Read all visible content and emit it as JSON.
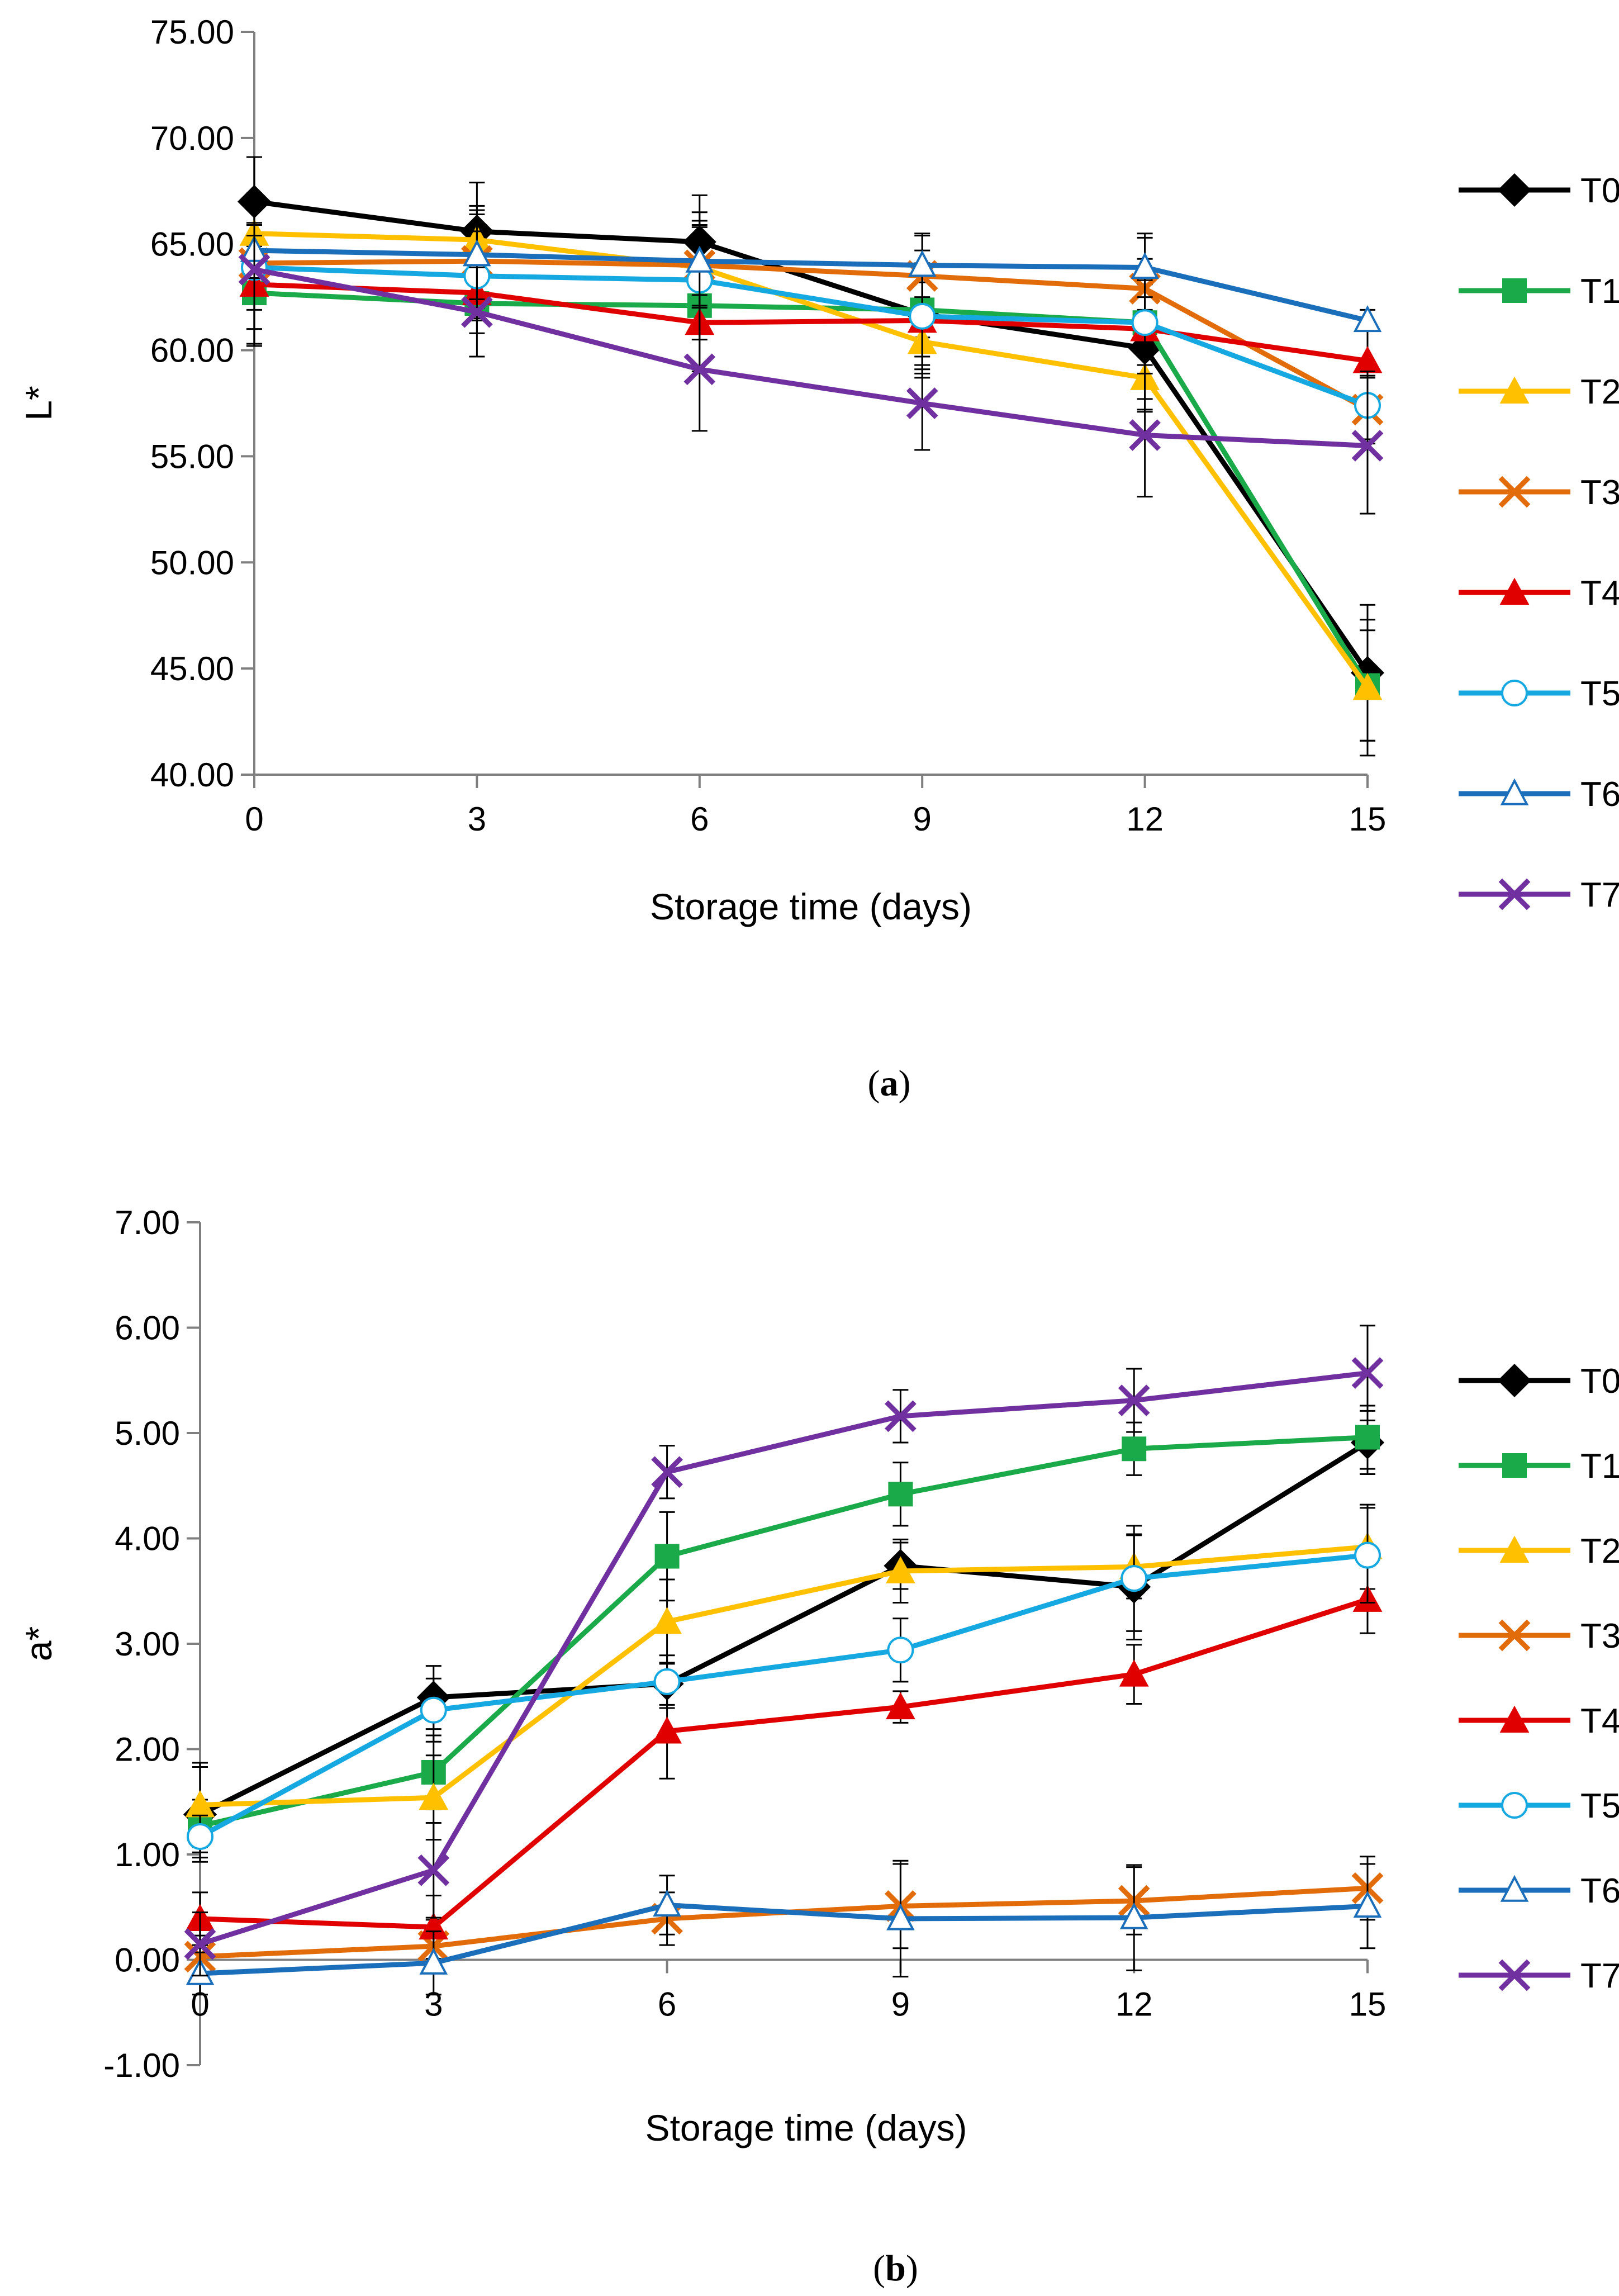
{
  "chart_data": [
    {
      "type": "line",
      "panel_label": "a",
      "xlabel": "Storage time (days)",
      "ylabel": "L*",
      "x": [
        0,
        3,
        6,
        9,
        12,
        15
      ],
      "x_tick_labels": [
        "0",
        "3",
        "6",
        "9",
        "12",
        "15"
      ],
      "ylim": [
        40,
        75
      ],
      "y_ticks": [
        40,
        45,
        50,
        55,
        60,
        65,
        70,
        75
      ],
      "y_tick_labels": [
        "40.00",
        "45.00",
        "50.00",
        "55.00",
        "60.00",
        "65.00",
        "70.00",
        "75.00"
      ],
      "legend_position": "right",
      "series": [
        {
          "name": "T0",
          "color": "#000000",
          "marker": "diamond",
          "values": [
            67.0,
            65.6,
            65.1,
            61.7,
            60.1,
            44.8
          ],
          "errors": [
            2.1,
            2.3,
            2.2,
            3.0,
            3.0,
            3.2
          ]
        },
        {
          "name": "T1",
          "color": "#1aaa4a",
          "marker": "square",
          "values": [
            62.7,
            62.2,
            62.1,
            61.9,
            61.3,
            44.2
          ],
          "errors": [
            1.7,
            1.4,
            1.3,
            1.3,
            0.6,
            2.6
          ]
        },
        {
          "name": "T2",
          "color": "#ffc000",
          "marker": "triangle",
          "values": [
            65.5,
            65.2,
            63.9,
            60.4,
            58.7,
            44.1
          ],
          "errors": [
            1.7,
            1.6,
            2.6,
            1.5,
            1.5,
            3.2
          ]
        },
        {
          "name": "T3",
          "color": "#e36c0a",
          "marker": "x",
          "values": [
            64.1,
            64.2,
            64.0,
            63.5,
            62.9,
            57.2
          ],
          "errors": [
            1.3,
            2.2,
            1.9,
            1.9,
            2.6,
            1.6
          ]
        },
        {
          "name": "T4",
          "color": "#e00000",
          "marker": "triangle",
          "values": [
            63.1,
            62.7,
            61.3,
            61.4,
            61.0,
            59.5
          ],
          "errors": [
            2.8,
            1.2,
            2.3,
            2.1,
            3.3,
            1.7
          ]
        },
        {
          "name": "T5",
          "color": "#16a8e0",
          "marker": "circle-open",
          "values": [
            63.9,
            63.5,
            63.3,
            61.6,
            61.3,
            57.4
          ],
          "errors": [
            2.0,
            2.1,
            2.8,
            2.5,
            2.0,
            1.6
          ]
        },
        {
          "name": "T6",
          "color": "#1b6fba",
          "marker": "triangle-open",
          "values": [
            64.7,
            64.5,
            64.2,
            64.0,
            63.9,
            61.4
          ],
          "errors": [
            1.3,
            2.1,
            1.6,
            1.5,
            1.4,
            0.5
          ]
        },
        {
          "name": "T7",
          "color": "#7030a0",
          "marker": "x",
          "values": [
            63.8,
            61.8,
            59.1,
            57.5,
            56.0,
            55.5
          ],
          "errors": [
            3.6,
            2.1,
            2.9,
            2.2,
            2.9,
            3.2
          ]
        }
      ]
    },
    {
      "type": "line",
      "panel_label": "b",
      "xlabel": "Storage time (days)",
      "ylabel": "a*",
      "x": [
        0,
        3,
        6,
        9,
        12,
        15
      ],
      "x_tick_labels": [
        "0",
        "3",
        "6",
        "9",
        "12",
        "15"
      ],
      "ylim": [
        -1,
        7
      ],
      "y_ticks": [
        -1,
        0,
        1,
        2,
        3,
        4,
        5,
        6,
        7
      ],
      "y_tick_labels": [
        "-1.00",
        "0.00",
        "1.00",
        "2.00",
        "3.00",
        "4.00",
        "5.00",
        "6.00",
        "7.00"
      ],
      "legend_position": "right",
      "series": [
        {
          "name": "T0",
          "color": "#000000",
          "marker": "diamond",
          "values": [
            1.38,
            2.49,
            2.62,
            3.74,
            3.54,
            4.91
          ],
          "errors": [
            0.45,
            0.3,
            0.2,
            0.22,
            0.5,
            0.3
          ]
        },
        {
          "name": "T1",
          "color": "#1aaa4a",
          "marker": "square",
          "values": [
            1.27,
            1.78,
            3.83,
            4.42,
            4.85,
            4.96
          ],
          "errors": [
            0.25,
            0.35,
            0.42,
            0.3,
            0.25,
            0.3
          ]
        },
        {
          "name": "T2",
          "color": "#ffc000",
          "marker": "triangle",
          "values": [
            1.47,
            1.54,
            3.21,
            3.69,
            3.73,
            3.92
          ],
          "errors": [
            0.4,
            0.4,
            0.4,
            0.3,
            0.3,
            0.4
          ]
        },
        {
          "name": "T3",
          "color": "#e36c0a",
          "marker": "x",
          "values": [
            0.03,
            0.13,
            0.39,
            0.51,
            0.56,
            0.68
          ],
          "errors": [
            0.2,
            0.25,
            0.25,
            0.4,
            0.32,
            0.3
          ]
        },
        {
          "name": "T4",
          "color": "#e00000",
          "marker": "triangle",
          "values": [
            0.39,
            0.31,
            2.17,
            2.4,
            2.71,
            3.42
          ],
          "errors": [
            0.25,
            0.3,
            0.45,
            0.15,
            0.28,
            0.32
          ]
        },
        {
          "name": "T5",
          "color": "#16a8e0",
          "marker": "circle-open",
          "values": [
            1.17,
            2.37,
            2.64,
            2.94,
            3.62,
            3.84
          ],
          "errors": [
            0.2,
            0.3,
            0.25,
            0.3,
            0.5,
            0.45
          ]
        },
        {
          "name": "T6",
          "color": "#1b6fba",
          "marker": "triangle-open",
          "values": [
            -0.13,
            -0.03,
            0.52,
            0.39,
            0.4,
            0.51
          ],
          "errors": [
            0.2,
            0.3,
            0.28,
            0.55,
            0.5,
            0.4
          ]
        },
        {
          "name": "T7",
          "color": "#7030a0",
          "marker": "x",
          "values": [
            0.15,
            0.85,
            4.63,
            5.16,
            5.31,
            5.57
          ],
          "errors": [
            0.3,
            0.45,
            0.25,
            0.25,
            0.3,
            0.45
          ]
        }
      ]
    }
  ]
}
